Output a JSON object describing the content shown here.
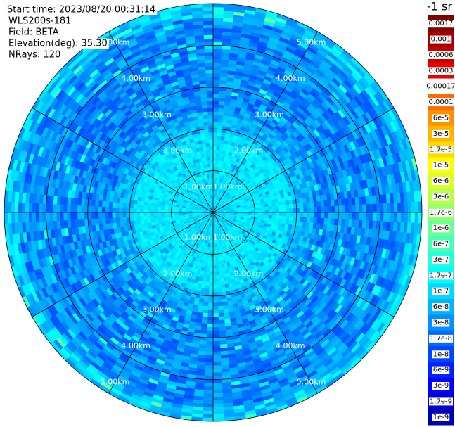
{
  "info": [
    "Start time: 2023/08/20 00:31:14",
    "WLS200s-181",
    "Field: BETA",
    "Elevation(deg): 35.30",
    "NRays: 120"
  ],
  "range_labels": [
    "1.00km",
    "2.00km",
    "3.00km",
    "4.00km",
    "5.00km"
  ],
  "colorbar": {
    "title": "-1 sr",
    "labels": [
      "0.0017",
      "0.001",
      "0.0006",
      "0.0003",
      "0.00017",
      "0.0001",
      "6e-5",
      "3e-5",
      "1.7e-5",
      "1e-5",
      "6e-6",
      "3e-6",
      "1.7e-6",
      "1e-6",
      "6e-7",
      "3e-7",
      "1.7e-7",
      "1e-7",
      "6e-8",
      "3e-8",
      "1.7e-8",
      "1e-8",
      "6e-9",
      "3e-9",
      "1.7e-9",
      "1e-9"
    ]
  }
}
